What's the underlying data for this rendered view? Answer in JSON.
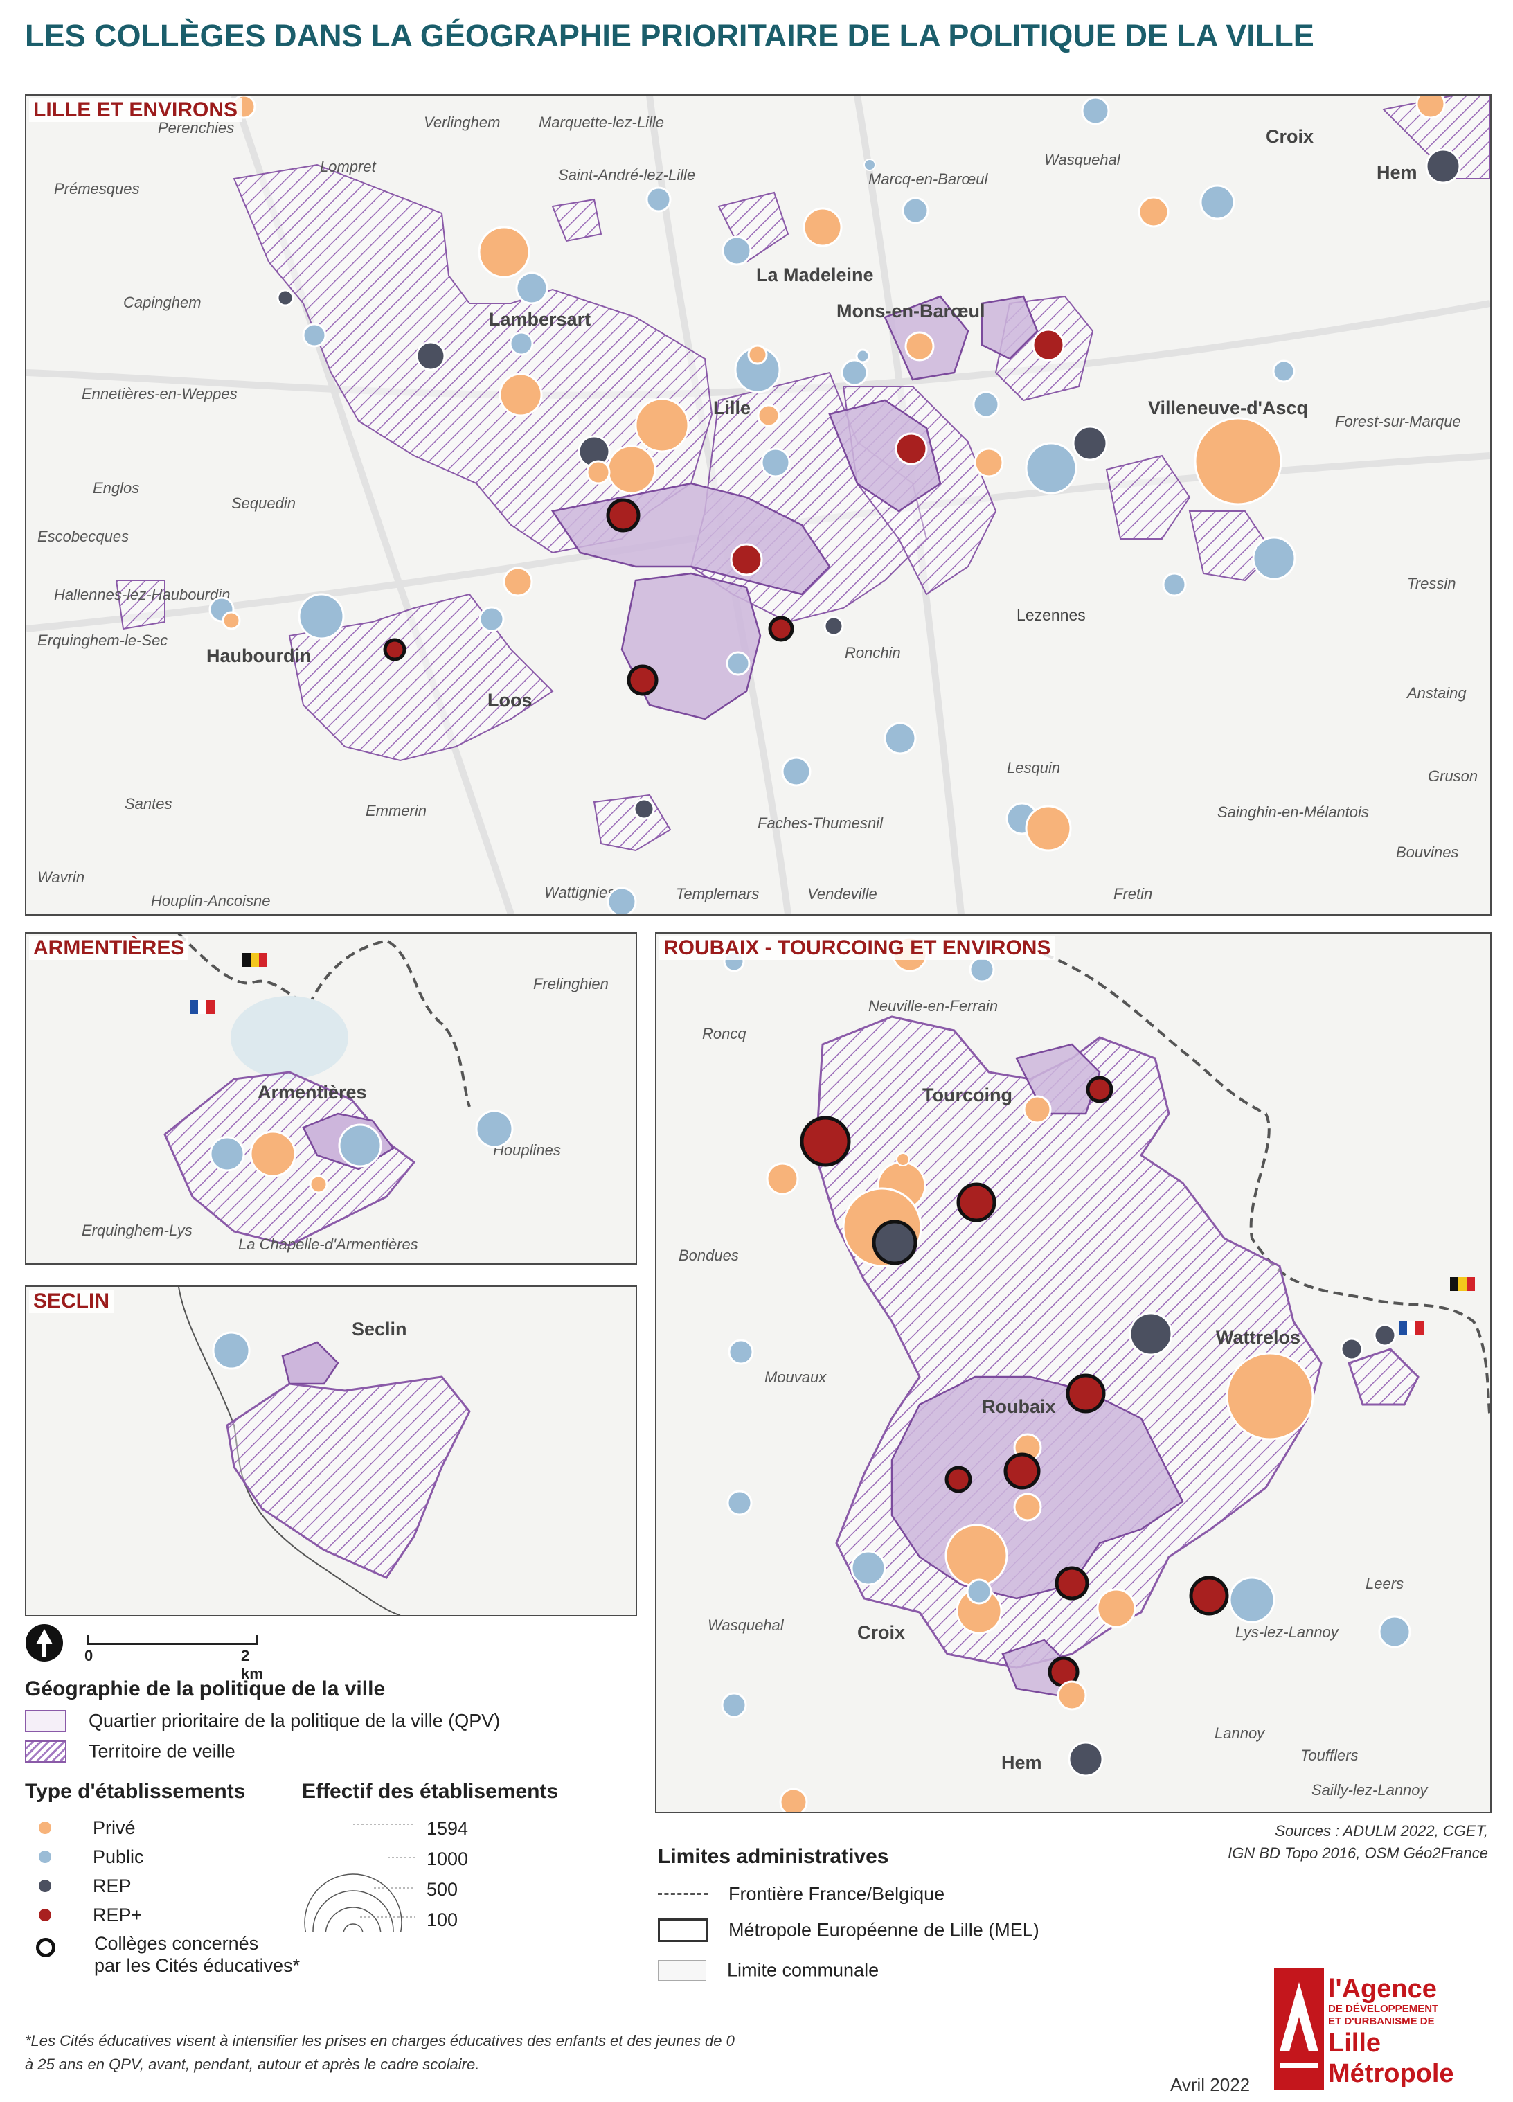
{
  "title": "LES COLLÈGES DANS LA GÉOGRAPHIE PRIORITAIRE DE LA POLITIQUE DE LA VILLE",
  "colors": {
    "prive": "#f7b37a",
    "public": "#9bbcd6",
    "rep": "#4b5060",
    "rep_plus": "#a8201f",
    "qpv": "#8a5aa8",
    "title": "#1b5e6b"
  },
  "panels": {
    "lille": {
      "title": "LILLE ET ENVIRONS",
      "towns_major": [
        "Lambersart",
        "La Madeleine",
        "Mons-en-Barœul",
        "Lille",
        "Villeneuve-d'Ascq",
        "Croix",
        "Hem",
        "Haubourdin",
        "Loos",
        "Lezennes"
      ],
      "towns_minor": [
        "Perenchies",
        "Verlinghem",
        "Marquette-lez-Lille",
        "Lompret",
        "Saint-André-lez-Lille",
        "Marcq-en-Barœul",
        "Wasquehal",
        "Prémesques",
        "Capinghem",
        "Ennetières-en-Weppes",
        "Forest-sur-Marque",
        "Englos",
        "Sequedin",
        "Escobecques",
        "Hallennes-lez-Haubourdin",
        "Erquinghem-le-Sec",
        "Tressin",
        "Ronchin",
        "Anstaing",
        "Lesquin",
        "Gruson",
        "Santes",
        "Emmerin",
        "Faches-Thumesnil",
        "Sainghin-en-Mélantois",
        "Bouvines",
        "Wavrin",
        "Houplin-Ancoisne",
        "Wattignies",
        "Templemars",
        "Vendeville",
        "Fretin"
      ]
    },
    "armentieres": {
      "title": "ARMENTIÈRES",
      "towns_major": [
        "Armentières"
      ],
      "towns_minor": [
        "Frelinghien",
        "Houplines",
        "Erquinghem-Lys",
        "La Chapelle-d'Armentières"
      ]
    },
    "seclin": {
      "title": "SECLIN",
      "towns_major": [
        "Seclin"
      ],
      "towns_minor": []
    },
    "roubaix": {
      "title": "ROUBAIX - TOURCOING ET ENVIRONS",
      "towns_major": [
        "Tourcoing",
        "Roubaix",
        "Wattrelos",
        "Croix",
        "Hem"
      ],
      "towns_minor": [
        "Neuville-en-Ferrain",
        "Roncq",
        "Bondues",
        "Mouvaux",
        "Wasquehal",
        "Leers",
        "Lys-lez-Lannoy",
        "Lannoy",
        "Toufflers",
        "Sailly-lez-Lannoy"
      ]
    }
  },
  "scale": {
    "start": "0",
    "end": "2 km"
  },
  "legend": {
    "geo_title": "Géographie de la politique de la ville",
    "qpv": "Quartier prioritaire de la politique de la ville (QPV)",
    "veille": "Territoire de veille",
    "type_title": "Type d'établissements",
    "types": [
      "Privé",
      "Public",
      "REP",
      "REP+"
    ],
    "cites_line1": "Collèges concernés",
    "cites_line2": "par les Cités éducatives*",
    "effectif_title": "Effectif des établisements",
    "effectif_values": [
      "1594",
      "1000",
      "500",
      "100"
    ],
    "limits_title": "Limites administratives",
    "frontiere": "Frontière France/Belgique",
    "mel": "Métropole Européenne de Lille (MEL)",
    "communale": "Limite communale"
  },
  "sources_line1": "Sources : ADULM 2022, CGET,",
  "sources_line2": "IGN BD Topo 2016, OSM Géo2France",
  "footnote_line1": "*Les Cités éducatives visent à intensifier les prises en charges éducatives des enfants et des jeunes de 0",
  "footnote_line2": "à 25 ans en QPV, avant, pendant, autour et après le cadre scolaire.",
  "date": "Avril 2022",
  "logo": {
    "line1": "l'Agence",
    "line2": "DE DÉVELOPPEMENT",
    "line3": "ET D'URBANISME DE",
    "line4": "Lille Métropole"
  }
}
